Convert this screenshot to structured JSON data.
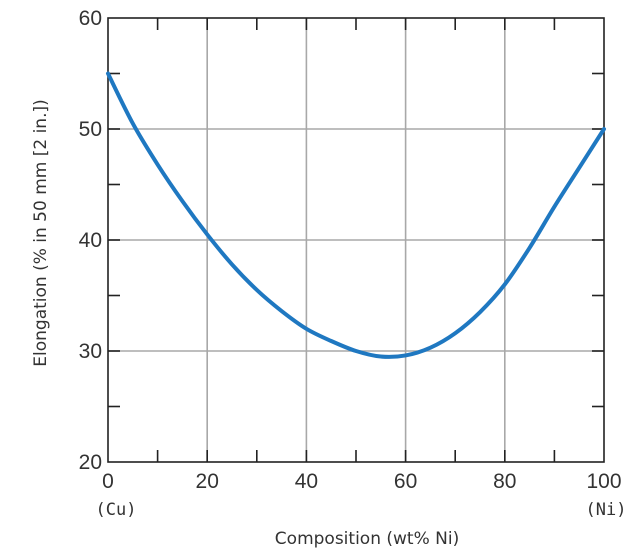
{
  "chart_data": {
    "type": "line",
    "title": "",
    "xlabel": "Composition (wt% Ni)",
    "ylabel": "Elongation (% in 50 mm [2 in.])",
    "xlim": [
      0,
      100
    ],
    "ylim": [
      20,
      60
    ],
    "x_ticks": [
      0,
      20,
      40,
      60,
      80,
      100
    ],
    "y_ticks": [
      20,
      30,
      40,
      50,
      60
    ],
    "x_tick_labels": [
      "0",
      "20",
      "40",
      "60",
      "80",
      "100"
    ],
    "y_tick_labels": [
      "20",
      "30",
      "40",
      "50",
      "60"
    ],
    "x_end_labels": {
      "left": "(Cu)",
      "right": "(Ni)"
    },
    "grid": true,
    "series": [
      {
        "color": "#1f78c1",
        "x": [
          0,
          5,
          10,
          15,
          20,
          25,
          30,
          35,
          40,
          45,
          50,
          55,
          60,
          65,
          70,
          75,
          80,
          85,
          90,
          95,
          100
        ],
        "y": [
          55,
          50.5,
          46.8,
          43.5,
          40.5,
          37.8,
          35.5,
          33.6,
          32.0,
          30.9,
          30.0,
          29.5,
          29.6,
          30.3,
          31.6,
          33.5,
          36.0,
          39.3,
          43.0,
          46.5,
          50.0
        ]
      }
    ]
  }
}
